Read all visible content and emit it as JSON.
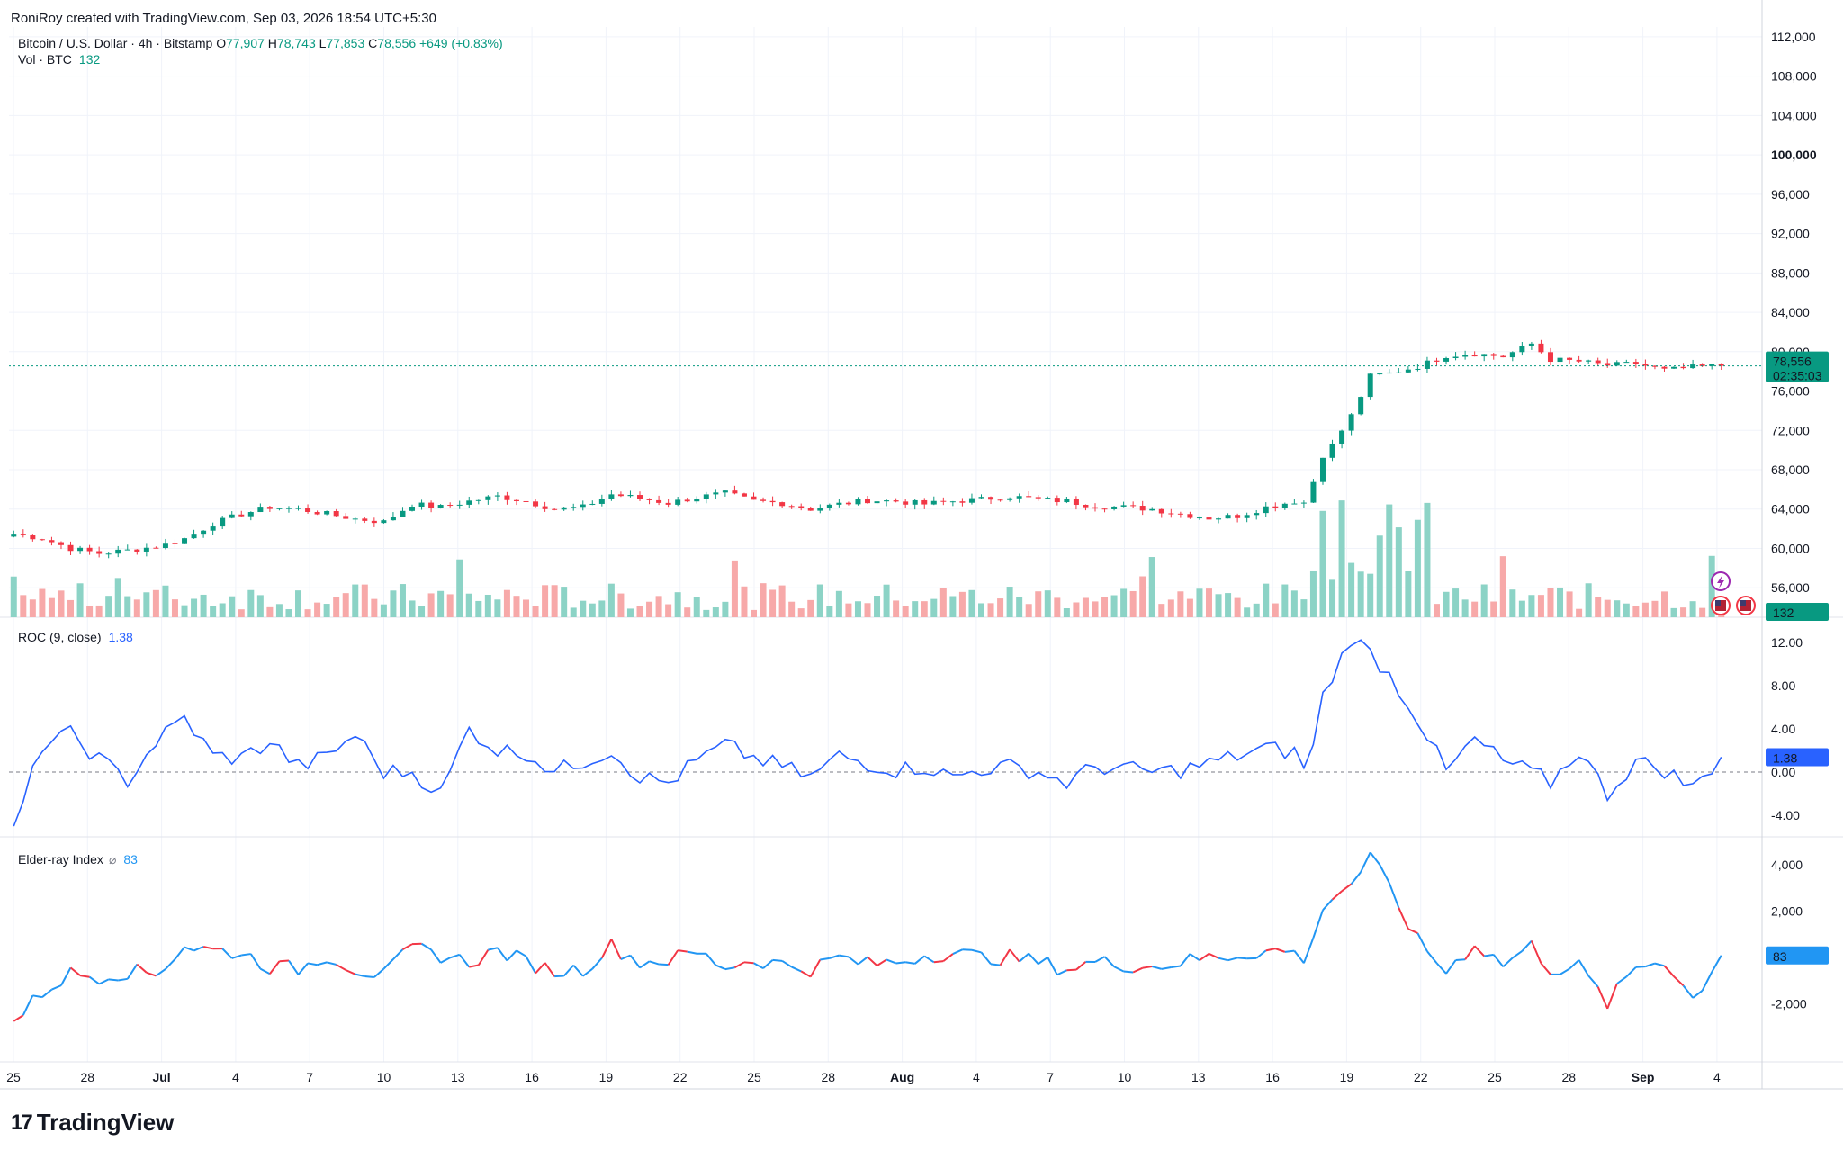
{
  "header": {
    "attribution": "RoniRoy created with TradingView.com, Sep 03, 2026 18:54 UTC+5:30"
  },
  "legend_main": {
    "symbol": "Bitcoin / U.S. Dollar · 4h · Bitstamp",
    "o_label": "O",
    "o_value": "77,907",
    "h_label": "H",
    "h_value": "78,743",
    "l_label": "L",
    "l_value": "77,853",
    "c_label": "C",
    "c_value": "78,556",
    "change": "+649 (+0.83%)"
  },
  "legend_vol": {
    "label": "Vol · BTC",
    "value": "132"
  },
  "legend_roc": {
    "label": "ROC (9, close)",
    "value": "1.38"
  },
  "legend_elder": {
    "label": "Elder-ray Index",
    "zero_icon": "⌀",
    "value": "83"
  },
  "price_badge": {
    "price": "78,556",
    "countdown": "02:35:03"
  },
  "vol_badge": "132",
  "roc_badge": "1.38",
  "elder_badge": "83",
  "colors": {
    "up": "#089981",
    "down": "#f23645",
    "roc_line": "#2962ff",
    "elder_line": "#2196f3",
    "elder_red": "#f23645"
  },
  "brand": {
    "name": "TradingView",
    "logo_glyph": "17"
  },
  "icons": [
    "lightning-icon",
    "us-flag-icon",
    "us-flag-icon"
  ],
  "chart_data": [
    {
      "type": "candlestick",
      "title": "Bitcoin / U.S. Dollar · 4h · Bitstamp",
      "x_ticks": [
        "25",
        "28",
        "Jul",
        "4",
        "7",
        "10",
        "13",
        "16",
        "19",
        "22",
        "25",
        "28",
        "Aug",
        "4",
        "7",
        "10",
        "13",
        "16",
        "19",
        "22",
        "25",
        "28",
        "Sep",
        "4"
      ],
      "y_ticks": [
        "112,000",
        "108,000",
        "104,000",
        "100,000",
        "96,000",
        "92,000",
        "88,000",
        "84,000",
        "80,000",
        "76,000",
        "72,000",
        "68,000",
        "64,000",
        "60,000",
        "56,000"
      ],
      "ylim": [
        53000,
        113000
      ],
      "close_path": [
        [
          0,
          61500
        ],
        [
          3,
          61000
        ],
        [
          6,
          60000
        ],
        [
          9,
          59500
        ],
        [
          12,
          59800
        ],
        [
          15,
          60200
        ],
        [
          18,
          61000
        ],
        [
          21,
          62500
        ],
        [
          24,
          63500
        ],
        [
          27,
          64200
        ],
        [
          30,
          64000
        ],
        [
          33,
          63500
        ],
        [
          36,
          63000
        ],
        [
          39,
          62700
        ],
        [
          42,
          64500
        ],
        [
          45,
          64200
        ],
        [
          48,
          64800
        ],
        [
          51,
          65300
        ],
        [
          54,
          64800
        ],
        [
          57,
          64000
        ],
        [
          60,
          64200
        ],
        [
          63,
          65500
        ],
        [
          66,
          65100
        ],
        [
          69,
          64600
        ],
        [
          72,
          65200
        ],
        [
          75,
          65600
        ],
        [
          78,
          64800
        ],
        [
          81,
          64600
        ],
        [
          84,
          64000
        ],
        [
          87,
          64500
        ],
        [
          90,
          64900
        ],
        [
          93,
          64800
        ],
        [
          96,
          64500
        ],
        [
          99,
          64800
        ],
        [
          102,
          65000
        ],
        [
          105,
          65300
        ],
        [
          108,
          65000
        ],
        [
          111,
          64800
        ],
        [
          114,
          64300
        ],
        [
          117,
          64200
        ],
        [
          120,
          64000
        ],
        [
          123,
          63500
        ],
        [
          126,
          63100
        ],
        [
          129,
          63300
        ],
        [
          132,
          64200
        ],
        [
          135,
          64800
        ],
        [
          136.5,
          64600
        ],
        [
          137.5,
          69000
        ],
        [
          139,
          70500
        ],
        [
          141,
          73500
        ],
        [
          143,
          77500
        ],
        [
          145,
          77800
        ],
        [
          148,
          78500
        ],
        [
          151,
          79600
        ],
        [
          154,
          79800
        ],
        [
          157,
          79500
        ],
        [
          160,
          80800
        ],
        [
          162,
          79200
        ],
        [
          165,
          79000
        ],
        [
          168,
          78600
        ],
        [
          171,
          78800
        ],
        [
          174,
          78100
        ],
        [
          177,
          78400
        ],
        [
          180,
          78556
        ]
      ],
      "close_last": 78556
    },
    {
      "type": "bar",
      "title": "Vol · BTC",
      "series_last": 132
    },
    {
      "type": "line",
      "title": "ROC (9, close)",
      "y_ticks": [
        "12.00",
        "8.00",
        "4.00",
        "0.00",
        "-4.00"
      ],
      "ylim": [
        -6,
        14
      ],
      "path": [
        [
          0,
          -5.5
        ],
        [
          3,
          2.5
        ],
        [
          6,
          3.5
        ],
        [
          9,
          1.2
        ],
        [
          12,
          -0.8
        ],
        [
          15,
          2.8
        ],
        [
          18,
          5
        ],
        [
          21,
          1.5
        ],
        [
          24,
          1.3
        ],
        [
          27,
          2.8
        ],
        [
          30,
          0.5
        ],
        [
          33,
          1.4
        ],
        [
          36,
          3.5
        ],
        [
          39,
          0
        ],
        [
          42,
          0
        ],
        [
          45,
          -2
        ],
        [
          48,
          4
        ],
        [
          51,
          2
        ],
        [
          54,
          1.8
        ],
        [
          57,
          0
        ],
        [
          60,
          1
        ],
        [
          63,
          2
        ],
        [
          66,
          -0.5
        ],
        [
          69,
          -1
        ],
        [
          72,
          1
        ],
        [
          75,
          2.5
        ],
        [
          78,
          1.3
        ],
        [
          81,
          0.5
        ],
        [
          84,
          -0.5
        ],
        [
          87,
          1.5
        ],
        [
          90,
          0.8
        ],
        [
          93,
          0.2
        ],
        [
          96,
          0.5
        ],
        [
          99,
          -0.5
        ],
        [
          102,
          0.3
        ],
        [
          105,
          0.5
        ],
        [
          108,
          0
        ],
        [
          111,
          -1
        ],
        [
          114,
          0.5
        ],
        [
          117,
          0.3
        ],
        [
          120,
          0
        ],
        [
          123,
          0.2
        ],
        [
          126,
          0.8
        ],
        [
          129,
          1.5
        ],
        [
          132,
          2.2
        ],
        [
          135,
          1.8
        ],
        [
          136.5,
          0
        ],
        [
          138,
          7
        ],
        [
          141,
          12.5
        ],
        [
          143,
          11
        ],
        [
          145,
          9
        ],
        [
          148,
          5
        ],
        [
          151,
          0
        ],
        [
          154,
          3
        ],
        [
          157,
          1
        ],
        [
          160,
          0
        ],
        [
          162,
          -1
        ],
        [
          165,
          2
        ],
        [
          168,
          -2
        ],
        [
          171,
          1
        ],
        [
          174,
          0.2
        ],
        [
          177,
          -1.5
        ],
        [
          180,
          1.38
        ]
      ],
      "last": 1.38
    },
    {
      "type": "line",
      "title": "Elder-ray Index",
      "y_ticks": [
        "4,000",
        "2,000",
        "-2,000"
      ],
      "ylim": [
        -4500,
        5000
      ],
      "path": [
        [
          0,
          -2800
        ],
        [
          3,
          -1500
        ],
        [
          6,
          -700
        ],
        [
          9,
          -800
        ],
        [
          12,
          -600
        ],
        [
          15,
          -700
        ],
        [
          18,
          500
        ],
        [
          21,
          300
        ],
        [
          24,
          200
        ],
        [
          27,
          -400
        ],
        [
          30,
          -500
        ],
        [
          33,
          100
        ],
        [
          36,
          -500
        ],
        [
          39,
          -800
        ],
        [
          42,
          400
        ],
        [
          45,
          100
        ],
        [
          48,
          -200
        ],
        [
          51,
          300
        ],
        [
          54,
          -200
        ],
        [
          57,
          -600
        ],
        [
          60,
          -500
        ],
        [
          63,
          500
        ],
        [
          66,
          -200
        ],
        [
          69,
          -100
        ],
        [
          72,
          200
        ],
        [
          75,
          -400
        ],
        [
          78,
          -100
        ],
        [
          81,
          -300
        ],
        [
          84,
          -500
        ],
        [
          87,
          0
        ],
        [
          90,
          -300
        ],
        [
          93,
          -200
        ],
        [
          96,
          100
        ],
        [
          99,
          200
        ],
        [
          102,
          0
        ],
        [
          105,
          0
        ],
        [
          108,
          -200
        ],
        [
          111,
          -500
        ],
        [
          114,
          -200
        ],
        [
          117,
          -300
        ],
        [
          120,
          -400
        ],
        [
          123,
          -200
        ],
        [
          126,
          0
        ],
        [
          129,
          100
        ],
        [
          132,
          300
        ],
        [
          135,
          200
        ],
        [
          136.5,
          -200
        ],
        [
          138,
          2300
        ],
        [
          141,
          3200
        ],
        [
          143,
          4300
        ],
        [
          145,
          3000
        ],
        [
          148,
          700
        ],
        [
          151,
          -600
        ],
        [
          154,
          600
        ],
        [
          157,
          -300
        ],
        [
          160,
          500
        ],
        [
          162,
          -500
        ],
        [
          165,
          -400
        ],
        [
          168,
          -2000
        ],
        [
          171,
          -400
        ],
        [
          174,
          -100
        ],
        [
          177,
          -1800
        ],
        [
          180,
          83
        ]
      ],
      "last": 83
    }
  ]
}
